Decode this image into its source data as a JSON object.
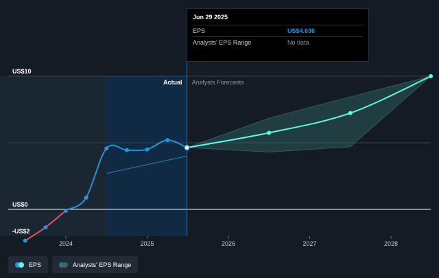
{
  "tooltip": {
    "date": "Jun 29 2025",
    "rows": [
      {
        "key": "EPS",
        "value": "US$4.636"
      },
      {
        "key": "Analysts' EPS Range",
        "value": "No data"
      }
    ]
  },
  "sections": {
    "actual": "Actual",
    "forecast": "Analysts Forecasts"
  },
  "legend": {
    "eps": "EPS",
    "range": "Analysts' EPS Range"
  },
  "chart_data": {
    "type": "line",
    "x_ticks": [
      "2024",
      "2025",
      "2026",
      "2027",
      "2028"
    ],
    "y_ticks": [
      {
        "value": 10,
        "label": "US$10"
      },
      {
        "value": 0,
        "label": "US$0"
      },
      {
        "value": -2,
        "label": "-US$2"
      }
    ],
    "ylim": [
      -2.6,
      10.2
    ],
    "xlim": [
      2023.37,
      2028.5
    ],
    "series": [
      {
        "name": "EPS",
        "kind": "actual",
        "points": [
          [
            2023.5,
            -2.35
          ],
          [
            2023.75,
            -1.35
          ],
          [
            2024.0,
            -0.1
          ],
          [
            2024.25,
            0.88
          ],
          [
            2024.5,
            4.58
          ],
          [
            2024.75,
            4.45
          ],
          [
            2025.0,
            4.5
          ],
          [
            2025.25,
            5.2
          ],
          [
            2025.49,
            4.636
          ]
        ]
      },
      {
        "name": "EPS Forecast",
        "kind": "forecast",
        "points": [
          [
            2025.49,
            4.636
          ],
          [
            2026.5,
            5.75
          ],
          [
            2027.5,
            7.23
          ],
          [
            2028.49,
            10.0
          ]
        ]
      }
    ],
    "forecast_range": {
      "x": [
        2025.49,
        2026.5,
        2027.5,
        2028.49
      ],
      "low": [
        4.636,
        4.3,
        4.7,
        10.0
      ],
      "high": [
        4.636,
        6.85,
        8.45,
        10.0
      ]
    },
    "colors": {
      "background": "#151b24",
      "actual_shade": "#1b2633",
      "highlight": "#0f2a42",
      "eps_blue": "#2394df",
      "eps_negative": "#e9505e",
      "forecast": "#5ef7e8",
      "range_fill": "#2f6b66",
      "zero_line": "#ffffff",
      "grid": "#3a424d"
    }
  }
}
